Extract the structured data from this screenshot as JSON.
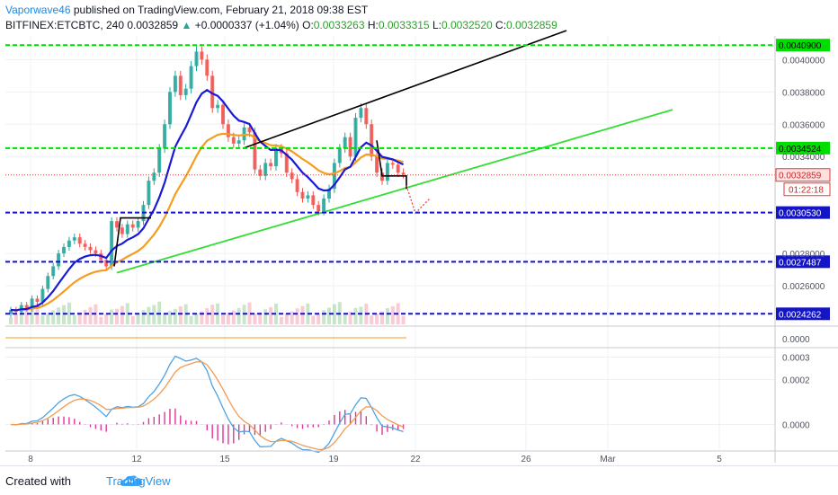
{
  "header": {
    "author": "Vaporwave46",
    "published": "published on TradingView.com, February 21, 2018 09:38 EST",
    "symbol": "BITFINEX:ETCBTC, 240",
    "last": "0.0032859",
    "change": "+0.0000337 (+1.04%)",
    "o_label": "O:",
    "o": "0.0033263",
    "h_label": "H:",
    "h": "0.0033315",
    "l_label": "L:",
    "l": "0.0032520",
    "c_label": "C:",
    "c": "0.0032859"
  },
  "footer": {
    "created_with": "Created with",
    "brand": "TradingView",
    "logo_icon": "tradingview-cloud-icon"
  },
  "colors": {
    "up": "#26a69a",
    "down": "#ef5350",
    "ema_fast": "#1a1ad6",
    "ema_slow": "#f59d1e",
    "trend_green": "#33dd33",
    "trend_black": "#000000",
    "level_green": "#00dd00",
    "level_blue": "#1515c8",
    "macd": "#4fa3e0",
    "signal": "#f39b53",
    "hist": "#e0349a"
  },
  "chart_data": {
    "type": "candlestick",
    "x_ticks": [
      "8",
      "12",
      "15",
      "19",
      "22",
      "26",
      "Mar",
      "5"
    ],
    "price_axis": {
      "ticks": [
        "0.0040000",
        "0.0038000",
        "0.0036000",
        "0.0034000",
        "0.0028000",
        "0.0026000"
      ],
      "ylim": [
        0.00235,
        0.00413
      ]
    },
    "price_levels": [
      {
        "value": 0.00409,
        "label": "0.0040900",
        "color": "green"
      },
      {
        "value": 0.0034524,
        "label": "0.0034524",
        "color": "green"
      },
      {
        "value": 0.003053,
        "label": "0.0030530",
        "color": "blue"
      },
      {
        "value": 0.0027487,
        "label": "0.0027487",
        "color": "blue"
      },
      {
        "value": 0.0024262,
        "label": "0.0024262",
        "color": "blue"
      }
    ],
    "last_price": {
      "value": 0.0032859,
      "label": "0.0032859",
      "countdown": "01:22:18"
    },
    "series_close": [
      0.00245,
      0.00244,
      0.00248,
      0.00246,
      0.00252,
      0.0025,
      0.00258,
      0.00266,
      0.00272,
      0.0028,
      0.00284,
      0.00288,
      0.0029,
      0.00286,
      0.00284,
      0.00282,
      0.0028,
      0.00276,
      0.00272,
      0.003,
      0.00296,
      0.00292,
      0.00298,
      0.00296,
      0.003,
      0.0031,
      0.00325,
      0.0033,
      0.00345,
      0.0036,
      0.0038,
      0.0039,
      0.00378,
      0.00382,
      0.00396,
      0.00405,
      0.004,
      0.0039,
      0.0037,
      0.00372,
      0.0036,
      0.00352,
      0.00348,
      0.0035,
      0.00358,
      0.00355,
      0.00332,
      0.00328,
      0.00336,
      0.00334,
      0.00345,
      0.00342,
      0.0033,
      0.00326,
      0.00318,
      0.00314,
      0.00316,
      0.0031,
      0.00306,
      0.00314,
      0.0032,
      0.00336,
      0.00345,
      0.00352,
      0.0034,
      0.00364,
      0.0037,
      0.0036,
      0.0034,
      0.0033,
      0.00325,
      0.00336,
      0.00335,
      0.0033,
      0.00329
    ],
    "volume_pane": {
      "label": "0.0000"
    },
    "macd_pane": {
      "ticks": [
        "0.0003",
        "0.0002",
        "0.0000"
      ],
      "ylim": [
        -0.00011,
        0.00033
      ]
    },
    "trend_lines": [
      {
        "color": "green",
        "from": [
          "Feb 10",
          0.00268
        ],
        "to": [
          "Mar 3",
          0.00369
        ]
      },
      {
        "color": "black",
        "from": [
          "Feb 15",
          0.00345
        ],
        "to": [
          "Feb 27",
          0.00418
        ]
      }
    ]
  }
}
